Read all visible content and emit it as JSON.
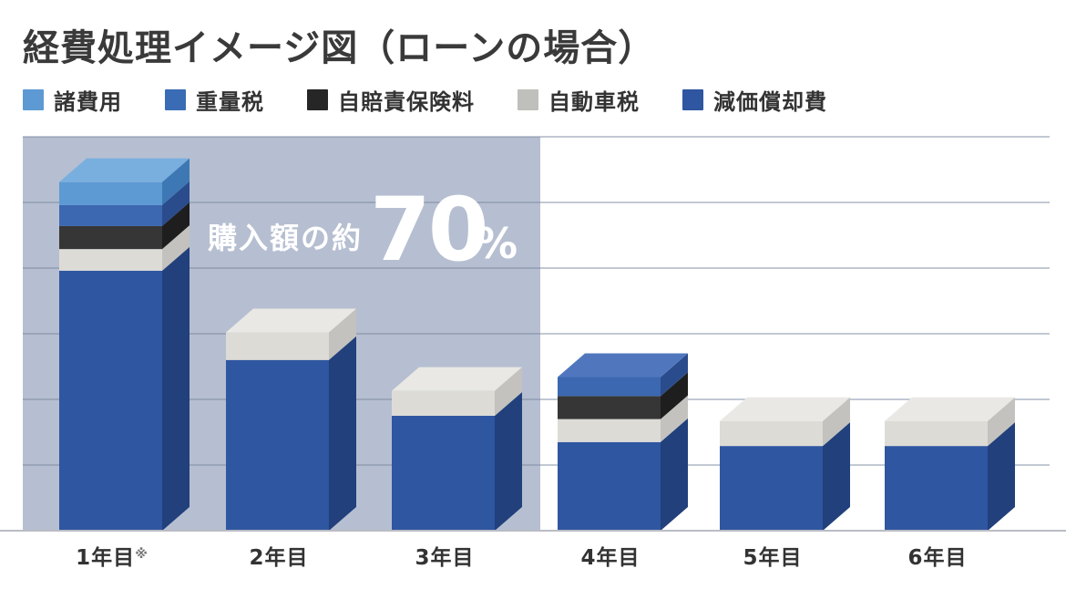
{
  "title": "経費処理イメージ図（ローンの場合）",
  "legend": {
    "items": [
      {
        "label": "諸費用",
        "color": "#5D9AD3"
      },
      {
        "label": "重量税",
        "color": "#3A6CB5"
      },
      {
        "label": "自賠責保険料",
        "color": "#262626"
      },
      {
        "label": "自動車税",
        "color": "#BFBFBB"
      },
      {
        "label": "減価償却費",
        "color": "#2F56A0"
      }
    ]
  },
  "chart_data": {
    "type": "bar",
    "variant": "3d-stacked",
    "title": "経費処理イメージ図（ローンの場合）",
    "categories": [
      "1年目",
      "2年目",
      "3年目",
      "4年目",
      "5年目",
      "6年目"
    ],
    "first_category_mark": "※",
    "ylim": [
      0,
      6
    ],
    "grid": true,
    "legend_position": "top",
    "series": [
      {
        "name": "諸費用",
        "color": "#5D9AD3",
        "color_top": "#79AFDE",
        "color_side": "#3E78B4",
        "values": [
          0.35,
          0,
          0,
          0,
          0,
          0
        ]
      },
      {
        "name": "重量税",
        "color": "#3C68B1",
        "color_top": "#5077BE",
        "color_side": "#2A4C8C",
        "values": [
          0.32,
          0,
          0,
          0.29,
          0,
          0
        ]
      },
      {
        "name": "自賠責保険料",
        "color": "#363636",
        "color_top": "#474747",
        "color_side": "#1E1E1E",
        "values": [
          0.35,
          0,
          0,
          0.35,
          0,
          0
        ]
      },
      {
        "name": "自動車税",
        "color": "#DCDBD6",
        "color_top": "#E9E8E4",
        "color_side": "#C3C2BE",
        "values": [
          0.33,
          0.42,
          0.38,
          0.35,
          0.38,
          0.38
        ]
      },
      {
        "name": "減価償却費",
        "color": "#2F56A0",
        "color_top": "#3D64AE",
        "color_side": "#21407C",
        "values": [
          3.96,
          2.6,
          1.75,
          1.35,
          1.29,
          1.29
        ]
      }
    ],
    "stack_order_bottom_to_top": [
      "減価償却費",
      "自動車税",
      "自賠責保険料",
      "重量税",
      "諸費用"
    ],
    "annotation": {
      "prefix": "購入額の約",
      "value": "70",
      "unit": "%",
      "color": "#FFFFFF"
    },
    "highlight_region": {
      "from_category": "1年目",
      "to_category": "3年目",
      "color": "#B6BFD1"
    }
  }
}
